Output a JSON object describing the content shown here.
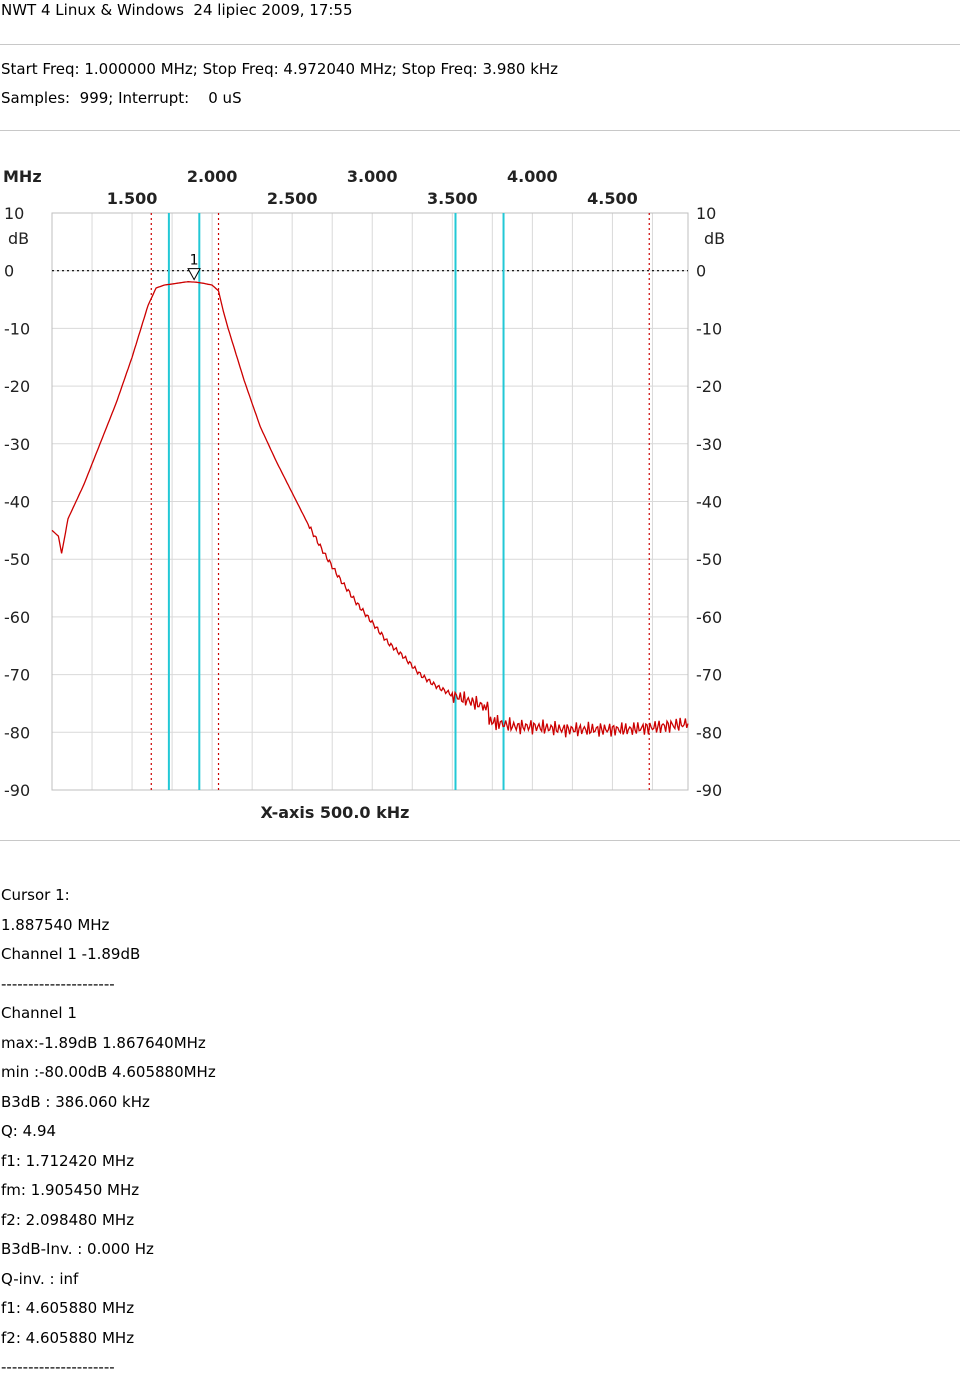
{
  "header": {
    "title": "NWT 4 Linux & Windows  24 lipiec 2009, 17:55",
    "freq_line": "Start Freq: 1.000000 MHz; Stop Freq: 4.972040 MHz; Stop Freq: 3.980 kHz",
    "samples_line": "Samples:  999; Interrupt:    0 uS"
  },
  "chart_data": {
    "type": "line",
    "title": "",
    "xlabel": "X-axis 500.0 kHz",
    "ylabel": "dB",
    "x_unit": "MHz",
    "xlim": [
      1.0,
      4.97204
    ],
    "ylim": [
      -90,
      10
    ],
    "x_ticks_upper": [
      "2.000",
      "3.000",
      "4.000"
    ],
    "x_ticks_lower": [
      "1.500",
      "2.500",
      "3.500",
      "4.500"
    ],
    "y_ticks": [
      "10",
      "0",
      "-10",
      "-20",
      "-30",
      "-40",
      "-50",
      "-60",
      "-70",
      "-80",
      "-90"
    ],
    "y_unit_left": "dB",
    "y_unit_right": "dB",
    "grid": true,
    "reference_line_db": 0,
    "marker": {
      "label": "1",
      "x": 1.8875,
      "y": -1.89
    },
    "cursor_lines": [
      1.73,
      1.92,
      3.52,
      3.82
    ],
    "dotted_lines": [
      1.62,
      2.04,
      4.73
    ],
    "series": [
      {
        "color": "#cc0000",
        "x": [
          1.0,
          1.04,
          1.06,
          1.1,
          1.15,
          1.2,
          1.25,
          1.3,
          1.35,
          1.4,
          1.45,
          1.5,
          1.55,
          1.6,
          1.65,
          1.7,
          1.75,
          1.8,
          1.85,
          1.9,
          1.95,
          2.0,
          2.04,
          2.07,
          2.1,
          2.15,
          2.2,
          2.25,
          2.3,
          2.4,
          2.5,
          2.6,
          2.7,
          2.8,
          2.9,
          3.0,
          3.1,
          3.2,
          3.3,
          3.4,
          3.5,
          3.6,
          3.7,
          3.72,
          3.73,
          3.8,
          3.9,
          4.0,
          4.2,
          4.4,
          4.6,
          4.8,
          4.972
        ],
        "y": [
          -45,
          -46,
          -49,
          -43,
          -40,
          -37,
          -33.5,
          -30,
          -26.5,
          -23,
          -19,
          -15,
          -10.5,
          -6,
          -3,
          -2.5,
          -2.3,
          -2.1,
          -1.9,
          -2.0,
          -2.2,
          -2.5,
          -3.5,
          -7,
          -10,
          -14.5,
          -19,
          -23,
          -27,
          -33,
          -38.5,
          -44,
          -49,
          -53.5,
          -57.5,
          -61,
          -64.5,
          -67,
          -70,
          -72,
          -73.5,
          -74.5,
          -75.5,
          -75.5,
          -78,
          -78.5,
          -79,
          -79,
          -79.5,
          -79.5,
          -79.5,
          -79,
          -78.5
        ]
      }
    ]
  },
  "results": {
    "lines": [
      "Cursor 1:",
      "1.887540 MHz",
      "Channel 1 -1.89dB",
      "---------------------",
      "Channel 1",
      "max:-1.89dB 1.867640MHz",
      "min :-80.00dB 4.605880MHz",
      "B3dB : 386.060 kHz",
      "Q: 4.94",
      "f1: 1.712420 MHz",
      "fm: 1.905450 MHz",
      "f2: 2.098480 MHz",
      "B3dB-Inv. : 0.000 Hz",
      "Q-inv. : inf",
      "f1: 4.605880 MHz",
      "f2: 4.605880 MHz",
      "---------------------"
    ]
  }
}
